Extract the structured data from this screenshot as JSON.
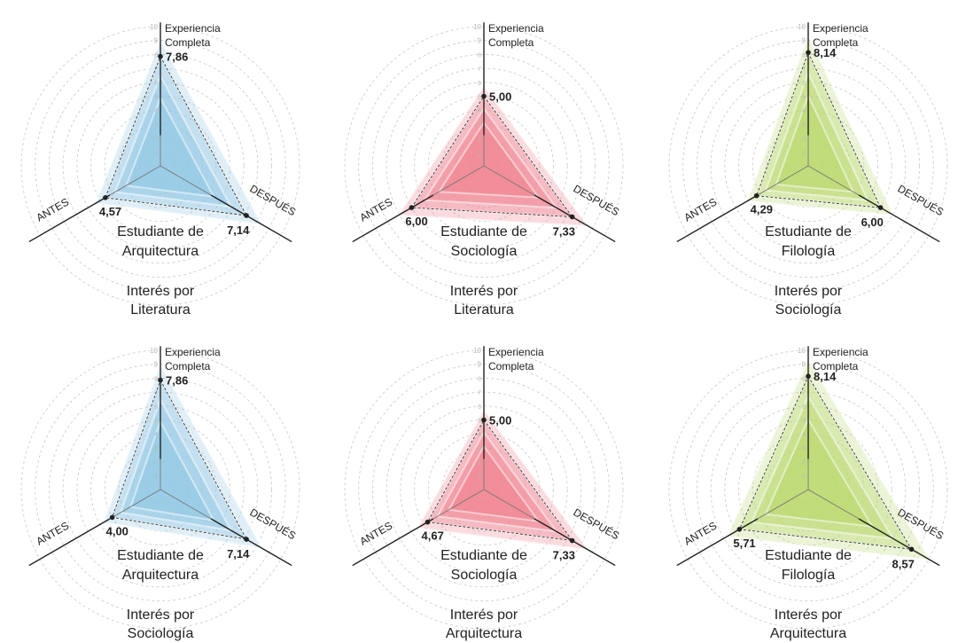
{
  "axis_labels": {
    "top": [
      "Experiencia",
      "Completa"
    ],
    "left": "ANTES",
    "right": "DESPUÉS"
  },
  "tick_labels": [
    "1",
    "2",
    "3",
    "4",
    "5",
    "6",
    "7",
    "8",
    "9",
    "10"
  ],
  "colors": {
    "blue": "#8ec6e2",
    "red": "#ef7f8c",
    "green": "#b8d86a",
    "grid": "#c8c8c8",
    "axis": "#222222",
    "dash": "#333333"
  },
  "chart_data": [
    {
      "type": "radar",
      "color": "blue",
      "axes": [
        "Experiencia Completa",
        "ANTES",
        "DESPUÉS"
      ],
      "range": [
        0,
        10
      ],
      "values": {
        "experiencia_completa": 7.86,
        "antes": 4.57,
        "despues": 7.14
      },
      "value_labels": {
        "experiencia_completa": "7,86",
        "antes": "4,57",
        "despues": "7,14"
      },
      "subject": [
        "Estudiante de",
        "Arquitectura"
      ],
      "interest": [
        "Interés por",
        "Literatura"
      ]
    },
    {
      "type": "radar",
      "color": "red",
      "axes": [
        "Experiencia Completa",
        "ANTES",
        "DESPUÉS"
      ],
      "range": [
        0,
        10
      ],
      "values": {
        "experiencia_completa": 5.0,
        "antes": 6.0,
        "despues": 7.33
      },
      "value_labels": {
        "experiencia_completa": "5,00",
        "antes": "6,00",
        "despues": "7,33"
      },
      "subject": [
        "Estudiante de",
        "Sociología"
      ],
      "interest": [
        "Interés por",
        "Literatura"
      ]
    },
    {
      "type": "radar",
      "color": "green",
      "axes": [
        "Experiencia Completa",
        "ANTES",
        "DESPUÉS"
      ],
      "range": [
        0,
        10
      ],
      "values": {
        "experiencia_completa": 8.14,
        "antes": 4.29,
        "despues": 6.0
      },
      "value_labels": {
        "experiencia_completa": "8,14",
        "antes": "4,29",
        "despues": "6,00"
      },
      "subject": [
        "Estudiante de",
        "Filología"
      ],
      "interest": [
        "Interés por",
        "Sociología"
      ]
    },
    {
      "type": "radar",
      "color": "blue",
      "axes": [
        "Experiencia Completa",
        "ANTES",
        "DESPUÉS"
      ],
      "range": [
        0,
        10
      ],
      "values": {
        "experiencia_completa": 7.86,
        "antes": 4.0,
        "despues": 7.14
      },
      "value_labels": {
        "experiencia_completa": "7,86",
        "antes": "4,00",
        "despues": "7,14"
      },
      "subject": [
        "Estudiante de",
        "Arquitectura"
      ],
      "interest": [
        "Interés por",
        "Sociología"
      ]
    },
    {
      "type": "radar",
      "color": "red",
      "axes": [
        "Experiencia Completa",
        "ANTES",
        "DESPUÉS"
      ],
      "range": [
        0,
        10
      ],
      "values": {
        "experiencia_completa": 5.0,
        "antes": 4.67,
        "despues": 7.33
      },
      "value_labels": {
        "experiencia_completa": "5,00",
        "antes": "4,67",
        "despues": "7,33"
      },
      "subject": [
        "Estudiante de",
        "Sociología"
      ],
      "interest": [
        "Interés por",
        "Arquitectura"
      ]
    },
    {
      "type": "radar",
      "color": "green",
      "axes": [
        "Experiencia Completa",
        "ANTES",
        "DESPUÉS"
      ],
      "range": [
        0,
        10
      ],
      "values": {
        "experiencia_completa": 8.14,
        "antes": 5.71,
        "despues": 8.57
      },
      "value_labels": {
        "experiencia_completa": "8,14",
        "antes": "5,71",
        "despues": "8,57"
      },
      "subject": [
        "Estudiante de",
        "Filología"
      ],
      "interest": [
        "Interés por",
        "Arquitectura"
      ]
    }
  ]
}
